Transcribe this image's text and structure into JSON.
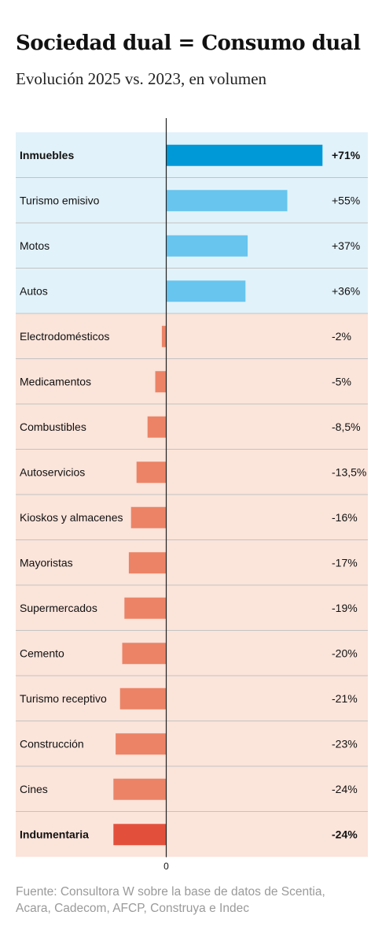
{
  "header": {
    "title": "Sociedad dual = Consumo dual",
    "subtitle": "Evolución 2025 vs. 2023, en volumen"
  },
  "footer": {
    "source": "Fuente: Consultora W sobre la base de datos de Scentia, Acara, Cadecom, AFCP, Construya e Indec"
  },
  "chart_data": {
    "type": "bar",
    "orientation": "horizontal",
    "categories": [
      "Inmuebles",
      "Turismo emisivo",
      "Motos",
      "Autos",
      "Electrodomésticos",
      "Medicamentos",
      "Combustibles",
      "Autoservicios",
      "Kioskos y almacenes",
      "Mayoristas",
      "Supermercados",
      "Cemento",
      "Turismo receptivo",
      "Construcción",
      "Cines",
      "Indumentaria"
    ],
    "values": [
      71,
      55,
      37,
      36,
      -2,
      -5,
      -8.5,
      -13.5,
      -16,
      -17,
      -19,
      -20,
      -21,
      -23,
      -24,
      -24
    ],
    "value_labels": [
      "+71%",
      "+55%",
      "+37%",
      "+36%",
      "-2%",
      "-5%",
      "-8,5%",
      "-13,5%",
      "-16%",
      "-17%",
      "-19%",
      "-20%",
      "-21%",
      "-23%",
      "-24%",
      "-24%"
    ],
    "bold_categories": [
      "Inmuebles",
      "Indumentaria"
    ],
    "xtick_labels": [
      "0"
    ],
    "grid": false,
    "colors": {
      "positive_bg": "#e2f2fa",
      "negative_bg": "#fbe4da",
      "positive_bar": "#67c5ee",
      "positive_highlight_bar": "#0099d8",
      "negative_bar": "#ec8366",
      "negative_highlight_bar": "#e2503c",
      "row_divider": "#c3c3c3",
      "axis_line": "#222222"
    }
  }
}
